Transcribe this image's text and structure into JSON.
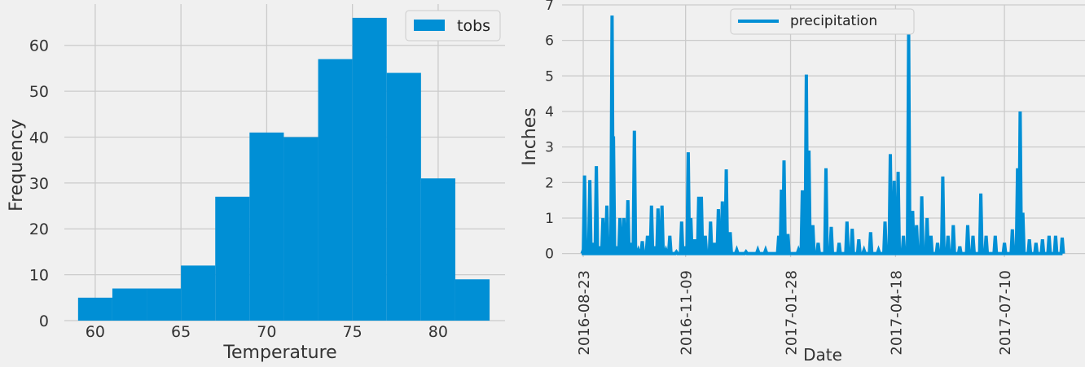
{
  "chart_data": [
    {
      "type": "bar",
      "subtype": "histogram",
      "xlabel": "Temperature",
      "ylabel": "Frequency",
      "xlim": [
        58.2,
        83.9
      ],
      "ylim": [
        0,
        69
      ],
      "x_ticks": [
        60,
        65,
        70,
        75,
        80
      ],
      "y_ticks": [
        0,
        10,
        20,
        30,
        40,
        50,
        60
      ],
      "bin_edges": [
        59,
        61,
        63,
        65,
        67,
        69,
        71,
        73,
        75,
        77,
        79,
        81,
        83
      ],
      "values": [
        5,
        7,
        7,
        12,
        27,
        41,
        40,
        57,
        66,
        54,
        31,
        9
      ],
      "color": "#008fd5",
      "legend": {
        "label": "tobs",
        "placement": "upper right"
      },
      "grid": true
    },
    {
      "type": "line",
      "xlabel": "Date",
      "ylabel": "Inches",
      "ylim": [
        -0.1,
        7
      ],
      "y_ticks": [
        0,
        1,
        2,
        3,
        4,
        5,
        6,
        7
      ],
      "x_tick_labels": [
        "2016-08-23",
        "2016-11-09",
        "2017-01-28",
        "2017-04-18",
        "2017-07-10"
      ],
      "color": "#008fd5",
      "legend": {
        "label": "precipitation",
        "placement": "upper center"
      },
      "grid": true,
      "series": [
        {
          "name": "precipitation",
          "x_start": "2016-08-23",
          "x_end": "2017-08-23",
          "points": [
            [
              "2016-08-23",
              0.1
            ],
            [
              "2016-08-24",
              2.2
            ],
            [
              "2016-08-26",
              0.1
            ],
            [
              "2016-08-28",
              2.07
            ],
            [
              "2016-08-31",
              0.3
            ],
            [
              "2016-09-02",
              2.46
            ],
            [
              "2016-09-05",
              0.2
            ],
            [
              "2016-09-07",
              1.0
            ],
            [
              "2016-09-10",
              1.35
            ],
            [
              "2016-09-12",
              0.4
            ],
            [
              "2016-09-14",
              6.7
            ],
            [
              "2016-09-15",
              3.3
            ],
            [
              "2016-09-17",
              0.2
            ],
            [
              "2016-09-20",
              1.0
            ],
            [
              "2016-09-23",
              1.0
            ],
            [
              "2016-09-26",
              1.5
            ],
            [
              "2016-09-29",
              0.3
            ],
            [
              "2016-10-01",
              3.46
            ],
            [
              "2016-10-04",
              0.1
            ],
            [
              "2016-10-07",
              0.35
            ],
            [
              "2016-10-11",
              0.5
            ],
            [
              "2016-10-14",
              1.35
            ],
            [
              "2016-10-17",
              0.2
            ],
            [
              "2016-10-19",
              1.27
            ],
            [
              "2016-10-22",
              1.35
            ],
            [
              "2016-10-25",
              0.1
            ],
            [
              "2016-10-28",
              0.5
            ],
            [
              "2016-11-02",
              0.05
            ],
            [
              "2016-11-06",
              0.9
            ],
            [
              "2016-11-09",
              0.2
            ],
            [
              "2016-11-11",
              2.85
            ],
            [
              "2016-11-13",
              1.0
            ],
            [
              "2016-11-16",
              0.4
            ],
            [
              "2016-11-19",
              1.6
            ],
            [
              "2016-11-21",
              1.6
            ],
            [
              "2016-11-24",
              0.5
            ],
            [
              "2016-11-28",
              0.9
            ],
            [
              "2016-12-01",
              0.3
            ],
            [
              "2016-12-04",
              1.25
            ],
            [
              "2016-12-07",
              1.47
            ],
            [
              "2016-12-10",
              2.37
            ],
            [
              "2016-12-13",
              0.6
            ],
            [
              "2016-12-18",
              0.1
            ],
            [
              "2016-12-25",
              0.05
            ],
            [
              "2017-01-03",
              0.1
            ],
            [
              "2017-01-09",
              0.1
            ],
            [
              "2017-01-19",
              0.5
            ],
            [
              "2017-01-21",
              1.8
            ],
            [
              "2017-01-23",
              2.62
            ],
            [
              "2017-01-26",
              0.55
            ],
            [
              "2017-02-03",
              0.1
            ],
            [
              "2017-02-06",
              1.78
            ],
            [
              "2017-02-09",
              5.04
            ],
            [
              "2017-02-11",
              2.9
            ],
            [
              "2017-02-14",
              0.8
            ],
            [
              "2017-02-18",
              0.3
            ],
            [
              "2017-02-24",
              2.4
            ],
            [
              "2017-02-28",
              0.75
            ],
            [
              "2017-03-06",
              0.3
            ],
            [
              "2017-03-12",
              0.9
            ],
            [
              "2017-03-16",
              0.7
            ],
            [
              "2017-03-21",
              0.4
            ],
            [
              "2017-03-25",
              0.1
            ],
            [
              "2017-03-30",
              0.6
            ],
            [
              "2017-04-05",
              0.1
            ],
            [
              "2017-04-10",
              0.9
            ],
            [
              "2017-04-14",
              2.8
            ],
            [
              "2017-04-17",
              2.05
            ],
            [
              "2017-04-20",
              2.3
            ],
            [
              "2017-04-24",
              0.5
            ],
            [
              "2017-04-28",
              6.25
            ],
            [
              "2017-05-01",
              1.2
            ],
            [
              "2017-05-04",
              0.8
            ],
            [
              "2017-05-08",
              1.61
            ],
            [
              "2017-05-12",
              1.0
            ],
            [
              "2017-05-15",
              0.5
            ],
            [
              "2017-05-20",
              0.3
            ],
            [
              "2017-05-24",
              2.17
            ],
            [
              "2017-05-28",
              0.5
            ],
            [
              "2017-06-01",
              0.8
            ],
            [
              "2017-06-06",
              0.2
            ],
            [
              "2017-06-12",
              0.8
            ],
            [
              "2017-06-16",
              0.5
            ],
            [
              "2017-06-22",
              1.69
            ],
            [
              "2017-06-26",
              0.5
            ],
            [
              "2017-07-03",
              0.5
            ],
            [
              "2017-07-10",
              0.3
            ],
            [
              "2017-07-16",
              0.68
            ],
            [
              "2017-07-20",
              2.4
            ],
            [
              "2017-07-22",
              4.0
            ],
            [
              "2017-07-24",
              1.15
            ],
            [
              "2017-07-29",
              0.4
            ],
            [
              "2017-08-03",
              0.3
            ],
            [
              "2017-08-08",
              0.4
            ],
            [
              "2017-08-13",
              0.5
            ],
            [
              "2017-08-18",
              0.5
            ],
            [
              "2017-08-23",
              0.45
            ]
          ]
        }
      ]
    }
  ]
}
